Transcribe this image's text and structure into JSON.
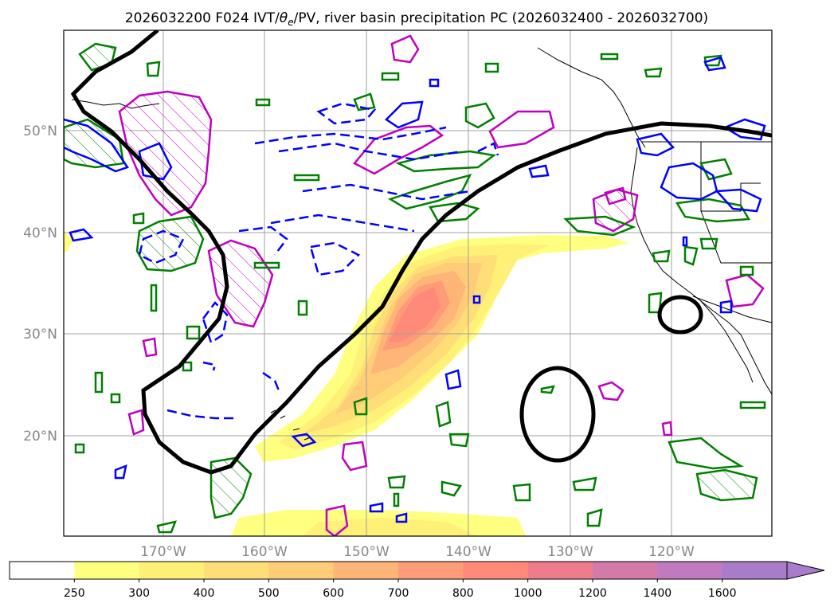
{
  "title": {
    "prefix": "2026032200 F024 IVT/",
    "theta": "θ",
    "sub": "e",
    "suffix": "/PV, river basin precipitation PC (2026032400 - 2026032700)"
  },
  "map": {
    "lat_labels": [
      "50°N",
      "40°N",
      "30°N",
      "20°N"
    ],
    "lon_labels": [
      "170°W",
      "160°W",
      "150°W",
      "140°W",
      "130°W",
      "120°W"
    ]
  },
  "colorbar": {
    "ticks": [
      "250",
      "300",
      "400",
      "500",
      "600",
      "700",
      "800",
      "1000",
      "1200",
      "1400",
      "1600"
    ],
    "colors": [
      "#ffffff",
      "#ffff80",
      "#fff078",
      "#ffde78",
      "#ffcc78",
      "#ffb478",
      "#ff9c78",
      "#ff8a7a",
      "#ee7d8c",
      "#d47aa8",
      "#c07ac0",
      "#a87cc8"
    ]
  },
  "colors": {
    "ivt_contour": "#000000",
    "theta_positive": "#008000",
    "theta_negative": "#0000ff",
    "pv": "#c000c0"
  }
}
